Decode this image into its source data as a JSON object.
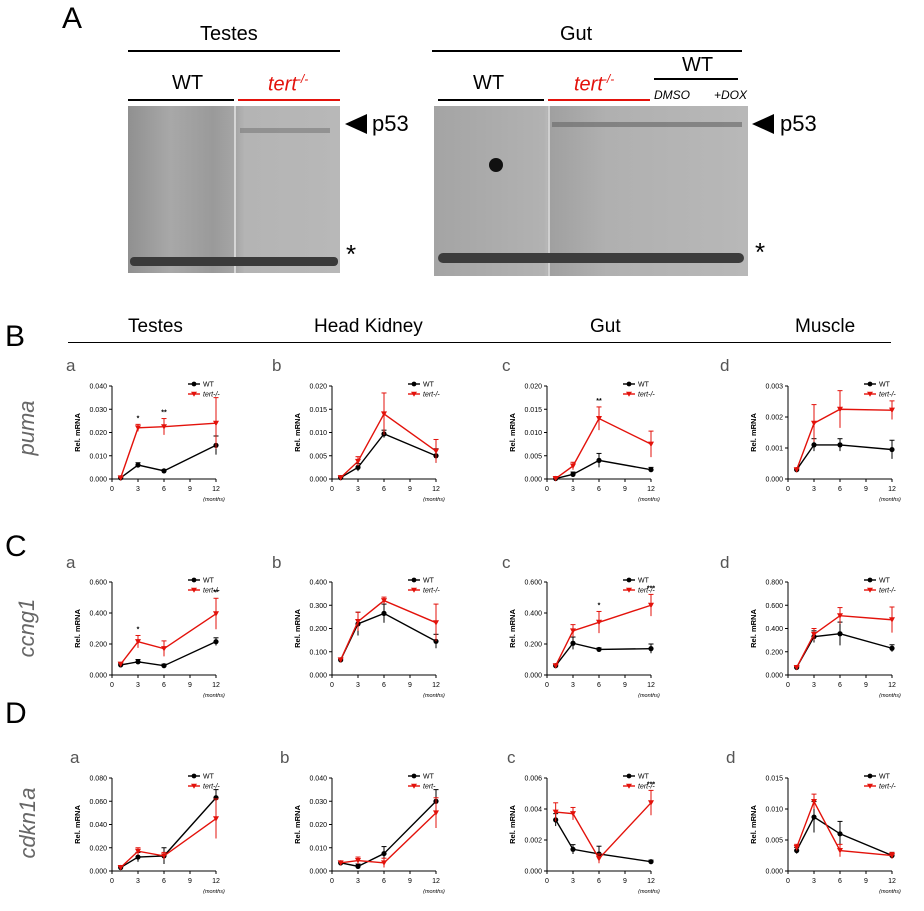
{
  "panel_a": {
    "letter": "A",
    "testes": {
      "title": "Testes",
      "wt": "WT",
      "mut": "tert",
      "mut_sup": "-/-"
    },
    "gut": {
      "title": "Gut",
      "wt": "WT",
      "mut": "tert",
      "mut_sup": "-/-",
      "wt2": "WT",
      "dmso": "DMSO",
      "dox": "+DOX"
    },
    "p53_label": "p53",
    "star": "*"
  },
  "tissues": [
    "Testes",
    "Head Kidney",
    "Gut",
    "Muscle"
  ],
  "colors": {
    "wt": "#000000",
    "mut": "#e3120b"
  },
  "rows": [
    {
      "letter": "B",
      "gene": "puma"
    },
    {
      "letter": "C",
      "gene": "ccng1"
    },
    {
      "letter": "D",
      "gene": "cdkn1a"
    }
  ],
  "chart_data": [
    {
      "type": "line",
      "row": "B",
      "sub": "a",
      "ylabel": "Rel. mRNA",
      "xlabel": "(months)",
      "x": [
        1,
        3,
        6,
        12
      ],
      "ylim": [
        0,
        0.04
      ],
      "yticks": [
        "0.000",
        "0.010",
        "0.020",
        "0.030",
        "0.040"
      ],
      "xticks": [
        "0",
        "3",
        "6",
        "9",
        "12"
      ],
      "series": [
        {
          "name": "WT",
          "values": [
            0.0005,
            0.006,
            0.0035,
            0.0145
          ]
        },
        {
          "name": "tert-/-",
          "values": [
            0.0005,
            0.022,
            0.0225,
            0.024
          ]
        }
      ],
      "err": {
        "WT": [
          0.0003,
          0.001,
          0.0005,
          0.004
        ],
        "tert-/-": [
          0.0003,
          0.0015,
          0.0035,
          0.011
        ]
      },
      "sig": [
        {
          "x": 3,
          "text": "*"
        },
        {
          "x": 6,
          "text": "**"
        }
      ],
      "legend": [
        "WT",
        "tert-/-"
      ]
    },
    {
      "type": "line",
      "row": "B",
      "sub": "b",
      "ylabel": "Rel. mRNA",
      "xlabel": "(months)",
      "x": [
        1,
        3,
        6,
        12
      ],
      "ylim": [
        0,
        0.02
      ],
      "yticks": [
        "0.000",
        "0.005",
        "0.010",
        "0.015",
        "0.020"
      ],
      "xticks": [
        "0",
        "3",
        "6",
        "9",
        "12"
      ],
      "series": [
        {
          "name": "WT",
          "values": [
            0.0003,
            0.0025,
            0.0097,
            0.005
          ]
        },
        {
          "name": "tert-/-",
          "values": [
            0.0003,
            0.0038,
            0.014,
            0.006
          ]
        }
      ],
      "err": {
        "WT": [
          0.0002,
          0.0008,
          0.0008,
          0.0015
        ],
        "tert-/-": [
          0.0002,
          0.001,
          0.0045,
          0.0025
        ]
      },
      "sig": [],
      "legend": [
        "WT",
        "tert-/-"
      ]
    },
    {
      "type": "line",
      "row": "B",
      "sub": "c",
      "ylabel": "Rel. mRNA",
      "xlabel": "(months)",
      "x": [
        1,
        3,
        6,
        12
      ],
      "ylim": [
        0,
        0.02
      ],
      "yticks": [
        "0.000",
        "0.005",
        "0.010",
        "0.015",
        "0.020"
      ],
      "xticks": [
        "0",
        "3",
        "6",
        "9",
        "12"
      ],
      "series": [
        {
          "name": "WT",
          "values": [
            0.0001,
            0.001,
            0.004,
            0.002
          ]
        },
        {
          "name": "tert-/-",
          "values": [
            0.0001,
            0.0028,
            0.013,
            0.0075
          ]
        }
      ],
      "err": {
        "WT": [
          0.0001,
          0.0005,
          0.0015,
          0.0005
        ],
        "tert-/-": [
          0.0001,
          0.0008,
          0.0025,
          0.0028
        ]
      },
      "sig": [
        {
          "x": 6,
          "text": "**"
        }
      ],
      "legend": [
        "WT",
        "tert-/-"
      ]
    },
    {
      "type": "line",
      "row": "B",
      "sub": "d",
      "ylabel": "Rel. mRNA",
      "xlabel": "(months)",
      "x": [
        1,
        3,
        6,
        12
      ],
      "ylim": [
        0,
        0.003
      ],
      "yticks": [
        "0.000",
        "0.001",
        "0.002",
        "0.003"
      ],
      "xticks": [
        "0",
        "3",
        "6",
        "9",
        "12"
      ],
      "series": [
        {
          "name": "WT",
          "values": [
            0.0003,
            0.0011,
            0.0011,
            0.00095
          ]
        },
        {
          "name": "tert-/-",
          "values": [
            0.0003,
            0.0018,
            0.00225,
            0.00222
          ]
        }
      ],
      "err": {
        "WT": [
          5e-05,
          0.0002,
          0.0002,
          0.0003
        ],
        "tert-/-": [
          5e-05,
          0.0006,
          0.0006,
          0.0003
        ]
      },
      "sig": [],
      "legend": [
        "WT",
        "tert-/-"
      ]
    },
    {
      "type": "line",
      "row": "C",
      "sub": "a",
      "ylabel": "Rel. mRNA",
      "xlabel": "(months)",
      "x": [
        1,
        3,
        6,
        12
      ],
      "ylim": [
        0,
        0.6
      ],
      "yticks": [
        "0.000",
        "0.200",
        "0.400",
        "0.600"
      ],
      "xticks": [
        "0",
        "3",
        "6",
        "9",
        "12"
      ],
      "series": [
        {
          "name": "WT",
          "values": [
            0.065,
            0.085,
            0.06,
            0.215
          ]
        },
        {
          "name": "tert-/-",
          "values": [
            0.07,
            0.215,
            0.17,
            0.395
          ]
        }
      ],
      "err": {
        "WT": [
          0.01,
          0.015,
          0.01,
          0.025
        ],
        "tert-/-": [
          0.01,
          0.04,
          0.05,
          0.1
        ]
      },
      "sig": [
        {
          "x": 3,
          "text": "*"
        },
        {
          "x": 12,
          "text": "**"
        }
      ],
      "legend": [
        "WT",
        "tert-/-"
      ]
    },
    {
      "type": "line",
      "row": "C",
      "sub": "b",
      "ylabel": "Rel. mRNA",
      "xlabel": "(months)",
      "x": [
        1,
        3,
        6,
        12
      ],
      "ylim": [
        0,
        0.4
      ],
      "yticks": [
        "0.000",
        "0.100",
        "0.200",
        "0.300",
        "0.400"
      ],
      "xticks": [
        "0",
        "3",
        "6",
        "9",
        "12"
      ],
      "series": [
        {
          "name": "WT",
          "values": [
            0.065,
            0.22,
            0.265,
            0.145
          ]
        },
        {
          "name": "tert-/-",
          "values": [
            0.065,
            0.23,
            0.32,
            0.225
          ]
        }
      ],
      "err": {
        "WT": [
          0.008,
          0.05,
          0.04,
          0.03
        ],
        "tert-/-": [
          0.008,
          0.04,
          0.015,
          0.08
        ]
      },
      "sig": [],
      "legend": [
        "WT",
        "tert-/-"
      ]
    },
    {
      "type": "line",
      "row": "C",
      "sub": "c",
      "ylabel": "Rel. mRNA",
      "xlabel": "(months)",
      "x": [
        1,
        3,
        6,
        12
      ],
      "ylim": [
        0,
        0.6
      ],
      "yticks": [
        "0.000",
        "0.200",
        "0.400",
        "0.600"
      ],
      "xticks": [
        "0",
        "3",
        "6",
        "9",
        "12"
      ],
      "series": [
        {
          "name": "WT",
          "values": [
            0.06,
            0.205,
            0.165,
            0.17
          ]
        },
        {
          "name": "tert-/-",
          "values": [
            0.06,
            0.285,
            0.34,
            0.45
          ]
        }
      ],
      "err": {
        "WT": [
          0.01,
          0.04,
          0.01,
          0.03
        ],
        "tert-/-": [
          0.01,
          0.04,
          0.07,
          0.07
        ]
      },
      "sig": [
        {
          "x": 6,
          "text": "*"
        },
        {
          "x": 12,
          "text": "***"
        }
      ],
      "legend": [
        "WT",
        "tert-/-"
      ]
    },
    {
      "type": "line",
      "row": "C",
      "sub": "d",
      "ylabel": "Rel. mRNA",
      "xlabel": "(months)",
      "x": [
        1,
        3,
        6,
        12
      ],
      "ylim": [
        0,
        0.8
      ],
      "yticks": [
        "0.000",
        "0.200",
        "0.400",
        "0.600",
        "0.800"
      ],
      "xticks": [
        "0",
        "3",
        "6",
        "9",
        "12"
      ],
      "series": [
        {
          "name": "WT",
          "values": [
            0.065,
            0.33,
            0.355,
            0.23
          ]
        },
        {
          "name": "tert-/-",
          "values": [
            0.065,
            0.35,
            0.51,
            0.475
          ]
        }
      ],
      "err": {
        "WT": [
          0.01,
          0.05,
          0.1,
          0.03
        ],
        "tert-/-": [
          0.01,
          0.05,
          0.07,
          0.11
        ]
      },
      "sig": [],
      "legend": [
        "WT",
        "tert-/-"
      ]
    },
    {
      "type": "line",
      "row": "D",
      "sub": "a",
      "ylabel": "Rel. mRNA",
      "xlabel": "(months)",
      "x": [
        1,
        3,
        6,
        12
      ],
      "ylim": [
        0,
        0.08
      ],
      "yticks": [
        "0.000",
        "0.020",
        "0.040",
        "0.060",
        "0.080"
      ],
      "xticks": [
        "0",
        "3",
        "6",
        "9",
        "12"
      ],
      "series": [
        {
          "name": "WT",
          "values": [
            0.003,
            0.012,
            0.013,
            0.063
          ]
        },
        {
          "name": "tert-/-",
          "values": [
            0.003,
            0.017,
            0.013,
            0.045
          ]
        }
      ],
      "err": {
        "WT": [
          0.001,
          0.004,
          0.007,
          0.007
        ],
        "tert-/-": [
          0.001,
          0.003,
          0.003,
          0.017
        ]
      },
      "sig": [],
      "legend": [
        "WT",
        "tert-/-"
      ]
    },
    {
      "type": "line",
      "row": "D",
      "sub": "b",
      "ylabel": "Rel. mRNA",
      "xlabel": "(months)",
      "x": [
        1,
        3,
        6,
        12
      ],
      "ylim": [
        0,
        0.04
      ],
      "yticks": [
        "0.000",
        "0.010",
        "0.020",
        "0.030",
        "0.040"
      ],
      "xticks": [
        "0",
        "3",
        "6",
        "9",
        "12"
      ],
      "series": [
        {
          "name": "WT",
          "values": [
            0.0035,
            0.002,
            0.0075,
            0.03
          ]
        },
        {
          "name": "tert-",
          "values": [
            0.0035,
            0.0045,
            0.0035,
            0.025
          ]
        }
      ],
      "err": {
        "WT": [
          0.0008,
          0.001,
          0.003,
          0.005
        ],
        "tert-": [
          0.0008,
          0.0015,
          0.002,
          0.0065
        ]
      },
      "sig": [],
      "legend": [
        "WT",
        "tert-"
      ]
    },
    {
      "type": "line",
      "row": "D",
      "sub": "c",
      "ylabel": "Rel. mRNA",
      "xlabel": "(months)",
      "x": [
        1,
        3,
        6,
        12
      ],
      "ylim": [
        0,
        0.006
      ],
      "yticks": [
        "0.000",
        "0.002",
        "0.004",
        "0.006"
      ],
      "xticks": [
        "0",
        "3",
        "6",
        "9",
        "12"
      ],
      "series": [
        {
          "name": "WT",
          "values": [
            0.0033,
            0.0014,
            0.0011,
            0.0006
          ]
        },
        {
          "name": "tert-/-",
          "values": [
            0.0038,
            0.0037,
            0.0008,
            0.0044
          ]
        }
      ],
      "err": {
        "WT": [
          0.0004,
          0.0003,
          0.0005,
          0.0001
        ],
        "tert-/-": [
          0.0006,
          0.0004,
          0.0003,
          0.0008
        ]
      },
      "sig": [
        {
          "x": 12,
          "text": "***"
        }
      ],
      "legend": [
        "WT",
        "tert-/-"
      ]
    },
    {
      "type": "line",
      "row": "D",
      "sub": "d",
      "ylabel": "Rel. mRNA",
      "xlabel": "(months)",
      "x": [
        1,
        3,
        6,
        12
      ],
      "ylim": [
        0,
        0.015
      ],
      "yticks": [
        "0.000",
        "0.005",
        "0.010",
        "0.015"
      ],
      "xticks": [
        "0",
        "3",
        "6",
        "9",
        "12"
      ],
      "series": [
        {
          "name": "WT",
          "values": [
            0.0033,
            0.0087,
            0.006,
            0.0025
          ]
        },
        {
          "name": "tert-/-",
          "values": [
            0.0038,
            0.0112,
            0.0033,
            0.0025
          ]
        }
      ],
      "err": {
        "WT": [
          0.0005,
          0.0025,
          0.002,
          0.0005
        ],
        "tert-/-": [
          0.0005,
          0.0012,
          0.001,
          0.0005
        ]
      },
      "sig": [],
      "legend": [
        "WT",
        "tert-/-"
      ]
    }
  ]
}
